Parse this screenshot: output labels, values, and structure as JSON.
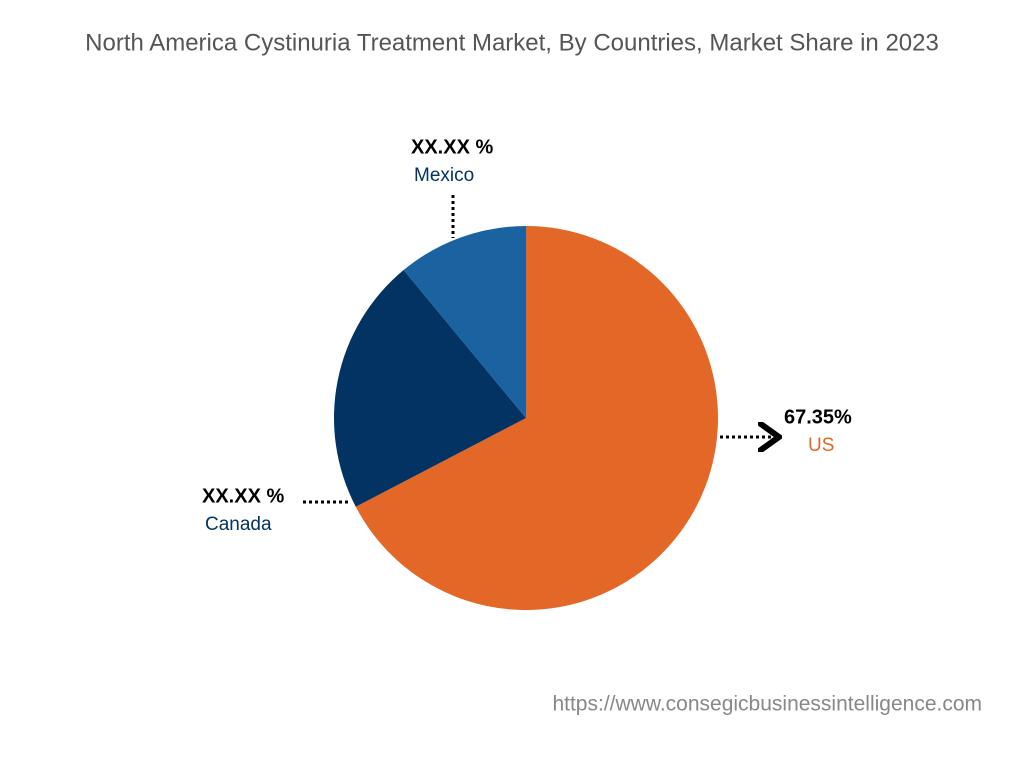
{
  "chart_data": {
    "type": "pie",
    "title": "North America Cystinuria Treatment Market, By Countries, Market Share in 2023",
    "categories": [
      "US",
      "Canada",
      "Mexico"
    ],
    "values": [
      67.35,
      21.65,
      11
    ],
    "value_labels": [
      "67.35%",
      "XX.XX %",
      "XX.XX %"
    ],
    "colors": [
      "#e36726",
      "#033363",
      "#1a62a0"
    ],
    "source": "https://www.consegicbusinessintelligence.com"
  }
}
